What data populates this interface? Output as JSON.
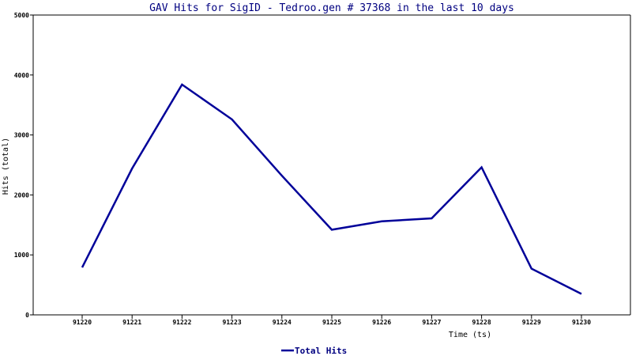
{
  "chart_data": {
    "type": "line",
    "title": "GAV Hits for SigID - Tedroo.gen # 37368 in the last 10 days",
    "xlabel": "Time (ts)",
    "ylabel": "Hits (total)",
    "x": [
      "91220",
      "91221",
      "91222",
      "91223",
      "91224",
      "91225",
      "91226",
      "91227",
      "91228",
      "91229",
      "91230"
    ],
    "series": [
      {
        "name": "Total Hits",
        "values": [
          790,
          2440,
          3840,
          3260,
          2320,
          1420,
          1560,
          1610,
          2460,
          770,
          350
        ],
        "color": "#000099"
      }
    ],
    "ylim": [
      0,
      5000
    ],
    "yticks": [
      "0",
      "1000",
      "2000",
      "3000",
      "4000",
      "5000"
    ],
    "grid": false,
    "legend_position": "bottom-center"
  }
}
